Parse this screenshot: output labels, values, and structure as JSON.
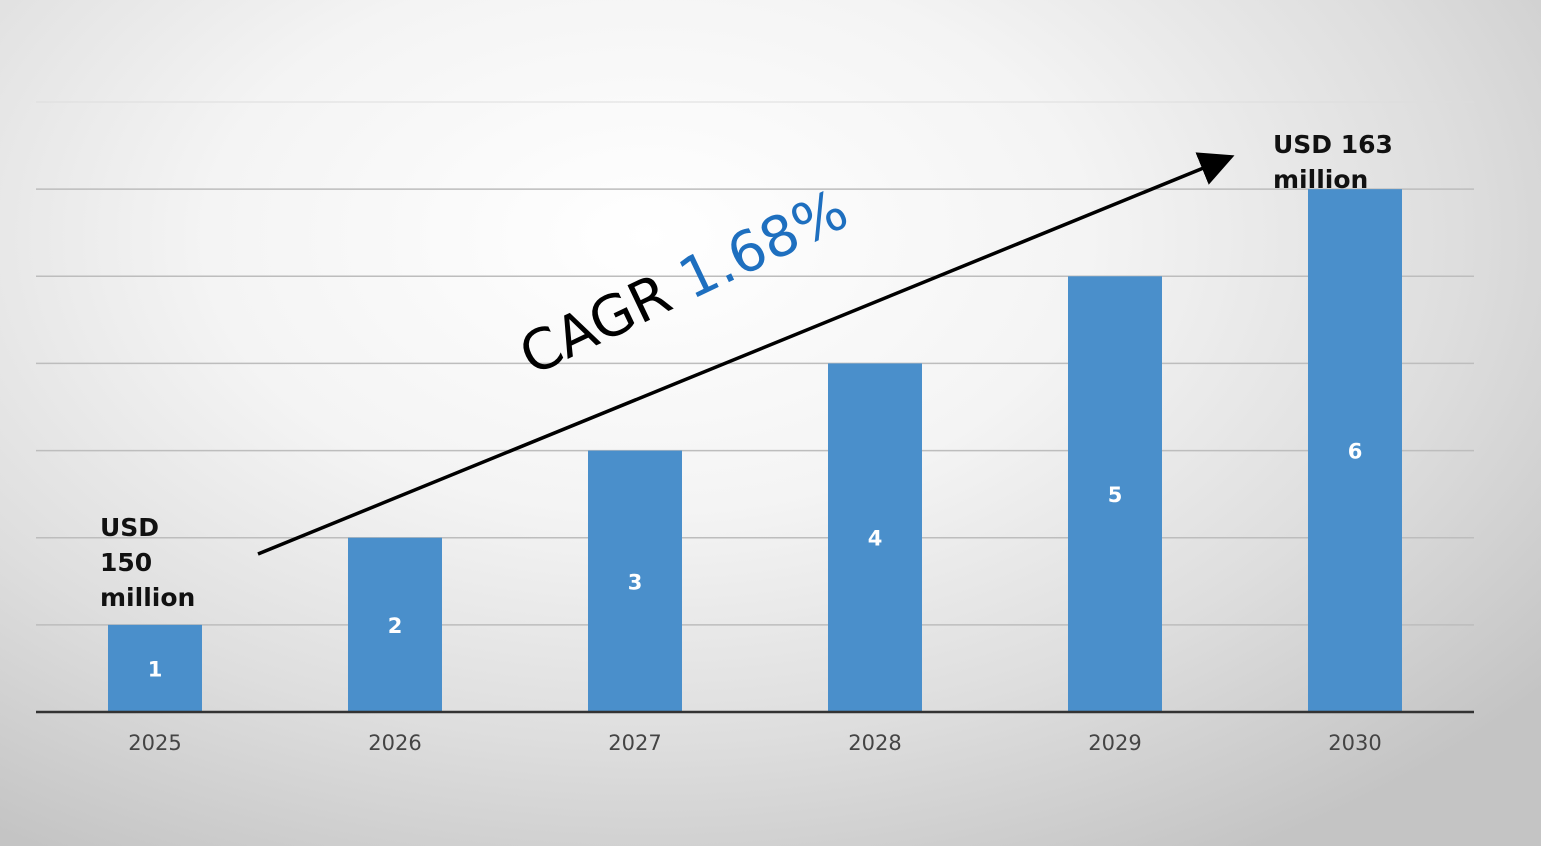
{
  "chart_data": {
    "type": "bar",
    "categories": [
      "2025",
      "2026",
      "2027",
      "2028",
      "2029",
      "2030"
    ],
    "values": [
      1,
      2,
      3,
      4,
      5,
      6
    ],
    "data_labels": [
      "1",
      "2",
      "3",
      "4",
      "5",
      "6"
    ],
    "ylim": [
      0,
      7
    ],
    "grid": true,
    "bar_color": "#4A8FCB",
    "annotations": {
      "start": [
        "USD",
        "150",
        "million"
      ],
      "end": [
        "USD 163",
        "million"
      ],
      "cagr_prefix": "CAGR",
      "cagr_value": "1.68%",
      "cagr_color": "#1E6FBF"
    }
  }
}
